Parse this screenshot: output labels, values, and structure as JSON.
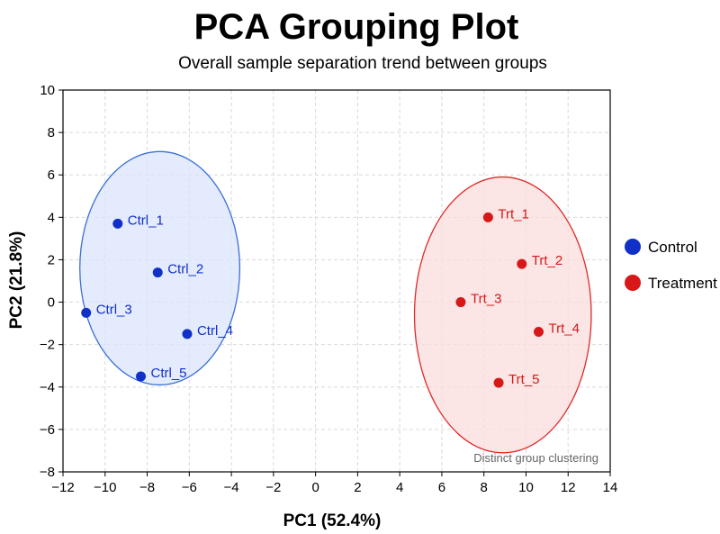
{
  "chart_data": {
    "type": "scatter",
    "title": "PCA Grouping Plot",
    "subtitle": "Overall sample separation trend between groups",
    "xlabel": "PC1 (52.4%)",
    "ylabel": "PC2 (21.8%)",
    "xlim": [
      -12,
      14
    ],
    "ylim": [
      -8,
      10
    ],
    "xticks": [
      -12,
      -10,
      -8,
      -6,
      -4,
      -2,
      0,
      2,
      4,
      6,
      8,
      10,
      12,
      14
    ],
    "yticks": [
      -8,
      -6,
      -4,
      -2,
      0,
      2,
      4,
      6,
      8,
      10
    ],
    "xtick_labels": [
      "−12",
      "−10",
      "−8",
      "−6",
      "−4",
      "−2",
      "0",
      "2",
      "4",
      "6",
      "8",
      "10",
      "12",
      "14"
    ],
    "ytick_labels": [
      "−8",
      "−6",
      "−4",
      "−2",
      "0",
      "2",
      "4",
      "6",
      "8",
      "10"
    ],
    "grid": true,
    "legend_position": "right",
    "series": [
      {
        "name": "Control",
        "color": "#1030c8",
        "ellipse": {
          "center": [
            -7.4,
            1.6
          ],
          "rx": 3.8,
          "ry": 5.5,
          "fill": "#dbe4fb",
          "stroke": "#3a6fd8"
        },
        "points": [
          {
            "label": "Ctrl_1",
            "x": -9.4,
            "y": 3.7
          },
          {
            "label": "Ctrl_2",
            "x": -7.5,
            "y": 1.4
          },
          {
            "label": "Ctrl_3",
            "x": -10.9,
            "y": -0.5
          },
          {
            "label": "Ctrl_4",
            "x": -6.1,
            "y": -1.5
          },
          {
            "label": "Ctrl_5",
            "x": -8.3,
            "y": -3.5
          }
        ]
      },
      {
        "name": "Treatment",
        "color": "#d81818",
        "ellipse": {
          "center": [
            8.9,
            -0.6
          ],
          "rx": 4.2,
          "ry": 6.5,
          "fill": "#fadcdc",
          "stroke": "#e02a2a"
        },
        "points": [
          {
            "label": "Trt_1",
            "x": 8.2,
            "y": 4.0
          },
          {
            "label": "Trt_2",
            "x": 9.8,
            "y": 1.8
          },
          {
            "label": "Trt_3",
            "x": 6.9,
            "y": 0.0
          },
          {
            "label": "Trt_4",
            "x": 10.6,
            "y": -1.4
          },
          {
            "label": "Trt_5",
            "x": 8.7,
            "y": -3.8
          }
        ]
      }
    ],
    "annotations": [
      {
        "text": "Distinct group clustering",
        "position": "bottom-right"
      }
    ]
  }
}
